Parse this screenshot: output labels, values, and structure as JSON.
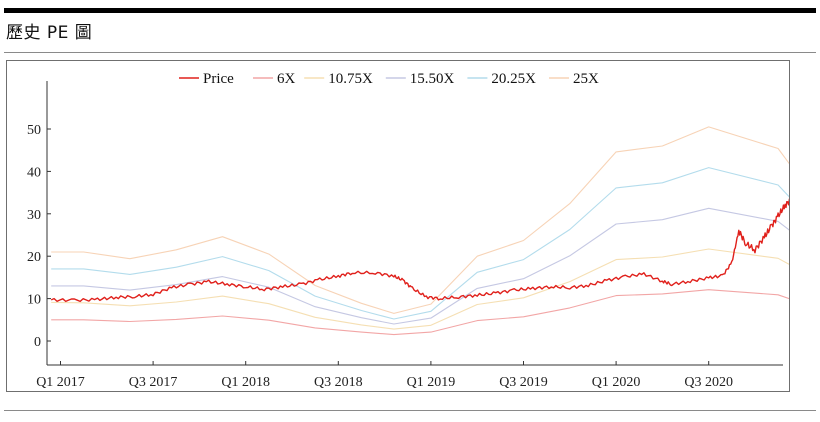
{
  "page": {
    "title": "歷史 PE 圖"
  },
  "chart_data": {
    "type": "line",
    "title": "",
    "xlabel": "",
    "ylabel": "",
    "ylim": [
      0,
      50
    ],
    "yticks": [
      0,
      10,
      20,
      30,
      40,
      50
    ],
    "xlim": [
      0,
      16
    ],
    "xticks": [
      {
        "label": "Q1 2017",
        "x": 0
      },
      {
        "label": "Q3 2017",
        "x": 2
      },
      {
        "label": "Q1 2018",
        "x": 4
      },
      {
        "label": "Q3 2018",
        "x": 6
      },
      {
        "label": "Q1 2019",
        "x": 8
      },
      {
        "label": "Q3 2019",
        "x": 10
      },
      {
        "label": "Q1 2020",
        "x": 12
      },
      {
        "label": "Q3 2020",
        "x": 14
      }
    ],
    "legend_position": "top",
    "grid": false,
    "series": [
      {
        "name": "Price",
        "color": "#e0201b",
        "width": 1.4,
        "points": [
          [
            -0.2,
            9.7
          ],
          [
            0.3,
            9.6
          ],
          [
            0.8,
            9.8
          ],
          [
            1.2,
            10.3
          ],
          [
            1.6,
            10.5
          ],
          [
            2.0,
            11.0
          ],
          [
            2.4,
            12.6
          ],
          [
            2.8,
            13.4
          ],
          [
            3.2,
            14.0
          ],
          [
            3.6,
            13.4
          ],
          [
            4.0,
            12.8
          ],
          [
            4.4,
            12.2
          ],
          [
            4.8,
            12.8
          ],
          [
            5.2,
            13.4
          ],
          [
            5.6,
            14.5
          ],
          [
            6.0,
            15.3
          ],
          [
            6.3,
            16.1
          ],
          [
            6.8,
            16.1
          ],
          [
            7.2,
            15.3
          ],
          [
            7.4,
            14.3
          ],
          [
            7.6,
            12.4
          ],
          [
            7.9,
            10.4
          ],
          [
            8.2,
            10.0
          ],
          [
            8.6,
            10.4
          ],
          [
            9.0,
            10.8
          ],
          [
            9.4,
            11.3
          ],
          [
            9.8,
            12.0
          ],
          [
            10.2,
            12.4
          ],
          [
            10.6,
            12.8
          ],
          [
            11.0,
            12.6
          ],
          [
            11.4,
            13.1
          ],
          [
            11.8,
            14.3
          ],
          [
            12.2,
            15.2
          ],
          [
            12.6,
            15.8
          ],
          [
            13.0,
            14.1
          ],
          [
            13.2,
            13.4
          ],
          [
            13.6,
            14.1
          ],
          [
            14.0,
            14.9
          ],
          [
            14.3,
            15.4
          ],
          [
            14.5,
            18.5
          ],
          [
            14.65,
            26.0
          ],
          [
            14.8,
            23.0
          ],
          [
            15.0,
            21.5
          ],
          [
            15.2,
            24.5
          ],
          [
            15.35,
            27.0
          ],
          [
            15.5,
            29.5
          ],
          [
            15.65,
            32.0
          ],
          [
            15.8,
            33.6
          ],
          [
            15.92,
            31.5
          ]
        ]
      },
      {
        "name": "6X",
        "color": "#f2a6a6",
        "width": 1.1,
        "points": [
          [
            -0.2,
            5.0
          ],
          [
            0.5,
            5.0
          ],
          [
            1.5,
            4.6
          ],
          [
            2.5,
            5.1
          ],
          [
            3.5,
            5.9
          ],
          [
            4.5,
            4.9
          ],
          [
            5.5,
            3.1
          ],
          [
            6.5,
            2.1
          ],
          [
            7.2,
            1.5
          ],
          [
            8.0,
            2.1
          ],
          [
            9.0,
            4.8
          ],
          [
            10.0,
            5.7
          ],
          [
            11.0,
            7.8
          ],
          [
            12.0,
            10.7
          ],
          [
            13.0,
            11.1
          ],
          [
            14.0,
            12.1
          ],
          [
            15.5,
            10.9
          ],
          [
            16.0,
            9.0
          ]
        ]
      },
      {
        "name": "10.75X",
        "color": "#f5dfb3",
        "width": 1.1,
        "points": [
          [
            -0.2,
            9.1
          ],
          [
            0.5,
            9.0
          ],
          [
            1.5,
            8.3
          ],
          [
            2.5,
            9.2
          ],
          [
            3.5,
            10.6
          ],
          [
            4.5,
            8.8
          ],
          [
            5.5,
            5.6
          ],
          [
            6.5,
            3.8
          ],
          [
            7.2,
            2.8
          ],
          [
            8.0,
            3.7
          ],
          [
            9.0,
            8.6
          ],
          [
            10.0,
            10.2
          ],
          [
            11.0,
            14.0
          ],
          [
            12.0,
            19.2
          ],
          [
            13.0,
            19.8
          ],
          [
            14.0,
            21.7
          ],
          [
            15.5,
            19.5
          ],
          [
            16.0,
            16.5
          ]
        ]
      },
      {
        "name": "15.50X",
        "color": "#c5c8e3",
        "width": 1.1,
        "points": [
          [
            -0.2,
            13.0
          ],
          [
            0.5,
            13.0
          ],
          [
            1.5,
            12.0
          ],
          [
            2.5,
            13.3
          ],
          [
            3.5,
            15.2
          ],
          [
            4.5,
            12.7
          ],
          [
            5.5,
            8.1
          ],
          [
            6.5,
            5.5
          ],
          [
            7.2,
            4.0
          ],
          [
            8.0,
            5.4
          ],
          [
            9.0,
            12.4
          ],
          [
            10.0,
            14.7
          ],
          [
            11.0,
            20.1
          ],
          [
            12.0,
            27.6
          ],
          [
            13.0,
            28.6
          ],
          [
            14.0,
            31.3
          ],
          [
            15.5,
            28.2
          ],
          [
            16.0,
            24.0
          ]
        ]
      },
      {
        "name": "20.25X",
        "color": "#b3dcec",
        "width": 1.1,
        "points": [
          [
            -0.2,
            17.0
          ],
          [
            0.5,
            17.0
          ],
          [
            1.5,
            15.7
          ],
          [
            2.5,
            17.4
          ],
          [
            3.5,
            19.9
          ],
          [
            4.5,
            16.6
          ],
          [
            5.5,
            10.6
          ],
          [
            6.5,
            7.2
          ],
          [
            7.2,
            5.2
          ],
          [
            8.0,
            7.0
          ],
          [
            9.0,
            16.2
          ],
          [
            10.0,
            19.2
          ],
          [
            11.0,
            26.3
          ],
          [
            12.0,
            36.1
          ],
          [
            13.0,
            37.3
          ],
          [
            14.0,
            40.9
          ],
          [
            15.5,
            36.8
          ],
          [
            16.0,
            31.0
          ]
        ]
      },
      {
        "name": "25X",
        "color": "#f7d3b6",
        "width": 1.1,
        "points": [
          [
            -0.2,
            21.0
          ],
          [
            0.5,
            21.0
          ],
          [
            1.5,
            19.4
          ],
          [
            2.5,
            21.5
          ],
          [
            3.5,
            24.6
          ],
          [
            4.5,
            20.5
          ],
          [
            5.5,
            13.1
          ],
          [
            6.5,
            8.9
          ],
          [
            7.2,
            6.5
          ],
          [
            8.0,
            8.7
          ],
          [
            9.0,
            20.0
          ],
          [
            10.0,
            23.7
          ],
          [
            11.0,
            32.4
          ],
          [
            12.0,
            44.6
          ],
          [
            13.0,
            46.0
          ],
          [
            14.0,
            50.5
          ],
          [
            15.5,
            45.4
          ],
          [
            16.0,
            38.0
          ]
        ]
      }
    ]
  }
}
